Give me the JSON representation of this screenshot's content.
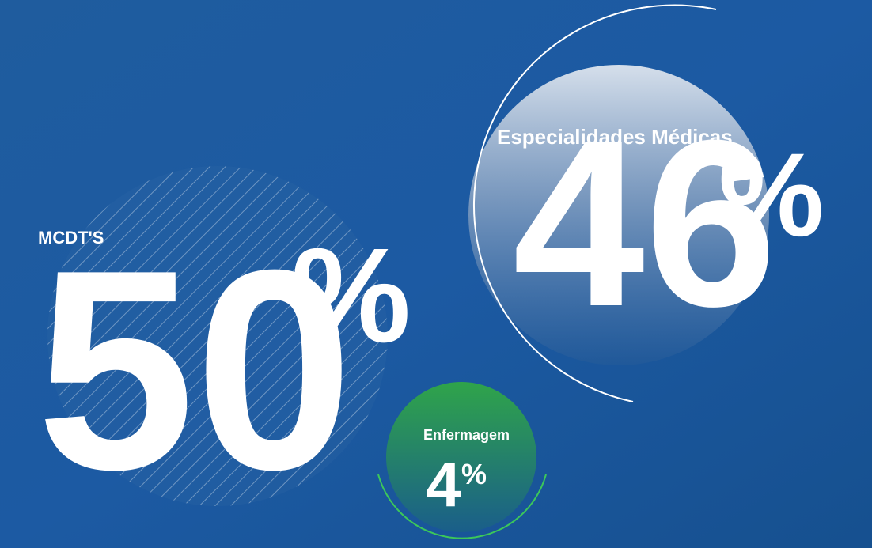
{
  "bubbles": [
    {
      "label": "MCDT'S",
      "value": 50,
      "unit": "%"
    },
    {
      "label": "Especialidades Médicas",
      "value": 46,
      "unit": "%"
    },
    {
      "label": "Enfermagem",
      "value": 4,
      "unit": "%"
    }
  ]
}
